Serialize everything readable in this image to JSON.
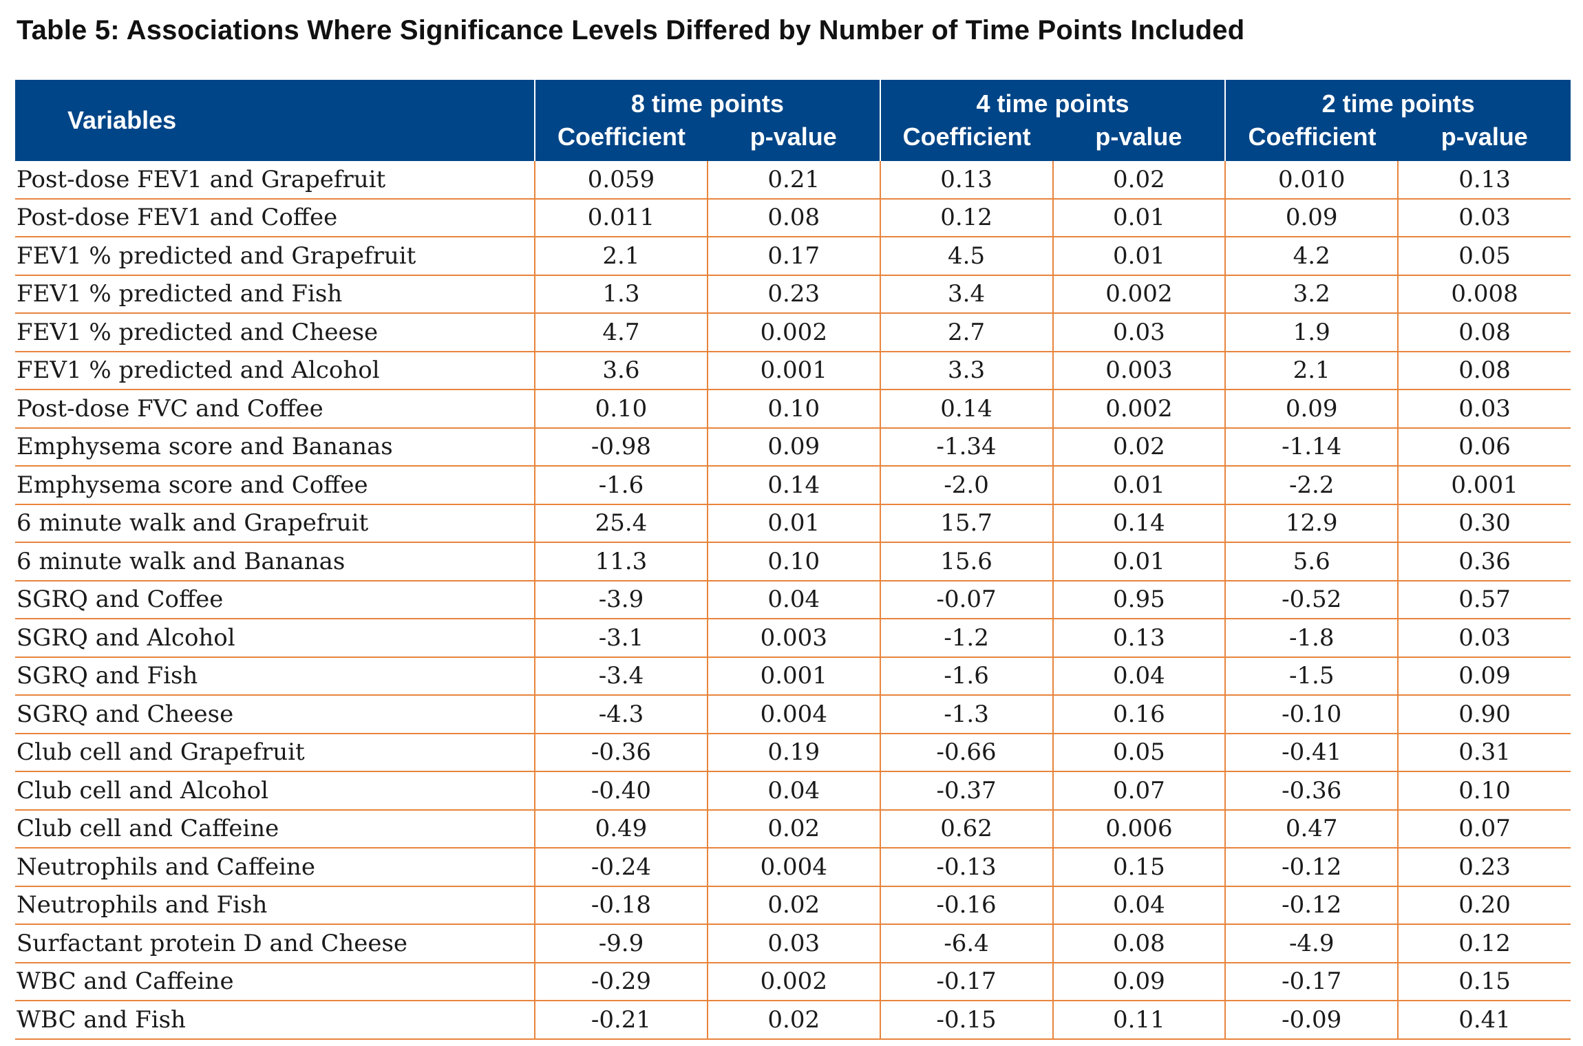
{
  "title": "Table 5:  Associations Where Significance Levels Differed by Number of Time Points Included",
  "header": {
    "variables": "Variables",
    "groups": [
      {
        "label": "8 time points",
        "coef": "Coefficient",
        "p": "p-value"
      },
      {
        "label": "4 time points",
        "coef": "Coefficient",
        "p": "p-value"
      },
      {
        "label": "2 time points",
        "coef": "Coefficient",
        "p": "p-value"
      }
    ]
  },
  "rows": [
    [
      "Post-dose FEV1 and Grapefruit",
      "0.059",
      "0.21",
      "0.13",
      "0.02",
      "0.010",
      "0.13"
    ],
    [
      "Post-dose FEV1 and Coffee",
      "0.011",
      "0.08",
      "0.12",
      "0.01",
      "0.09",
      "0.03"
    ],
    [
      "FEV1 % predicted and Grapefruit",
      "2.1",
      "0.17",
      "4.5",
      "0.01",
      "4.2",
      "0.05"
    ],
    [
      "FEV1 % predicted and Fish",
      "1.3",
      "0.23",
      "3.4",
      "0.002",
      "3.2",
      "0.008"
    ],
    [
      "FEV1 % predicted and Cheese",
      "4.7",
      "0.002",
      "2.7",
      "0.03",
      "1.9",
      "0.08"
    ],
    [
      "FEV1 % predicted and Alcohol",
      "3.6",
      "0.001",
      "3.3",
      "0.003",
      "2.1",
      "0.08"
    ],
    [
      "Post-dose FVC and Coffee",
      "0.10",
      "0.10",
      "0.14",
      "0.002",
      "0.09",
      "0.03"
    ],
    [
      "Emphysema score and Bananas",
      "-0.98",
      "0.09",
      "-1.34",
      "0.02",
      "-1.14",
      "0.06"
    ],
    [
      "Emphysema score and Coffee",
      "-1.6",
      "0.14",
      "-2.0",
      "0.01",
      "-2.2",
      "0.001"
    ],
    [
      "6 minute walk and Grapefruit",
      "25.4",
      "0.01",
      "15.7",
      "0.14",
      "12.9",
      "0.30"
    ],
    [
      "6 minute walk and Bananas",
      "11.3",
      "0.10",
      "15.6",
      "0.01",
      "5.6",
      "0.36"
    ],
    [
      "SGRQ and Coffee",
      "-3.9",
      "0.04",
      "-0.07",
      "0.95",
      "-0.52",
      "0.57"
    ],
    [
      "SGRQ and Alcohol",
      "-3.1",
      "0.003",
      "-1.2",
      "0.13",
      "-1.8",
      "0.03"
    ],
    [
      "SGRQ and Fish",
      "-3.4",
      "0.001",
      "-1.6",
      "0.04",
      "-1.5",
      "0.09"
    ],
    [
      "SGRQ and Cheese",
      "-4.3",
      "0.004",
      "-1.3",
      "0.16",
      "-0.10",
      "0.90"
    ],
    [
      "Club cell and Grapefruit",
      "-0.36",
      "0.19",
      "-0.66",
      "0.05",
      "-0.41",
      "0.31"
    ],
    [
      "Club cell and Alcohol",
      "-0.40",
      "0.04",
      "-0.37",
      "0.07",
      "-0.36",
      "0.10"
    ],
    [
      "Club cell and Caffeine",
      "0.49",
      "0.02",
      "0.62",
      "0.006",
      "0.47",
      "0.07"
    ],
    [
      "Neutrophils and Caffeine",
      "-0.24",
      "0.004",
      "-0.13",
      "0.15",
      "-0.12",
      "0.23"
    ],
    [
      "Neutrophils and Fish",
      "-0.18",
      "0.02",
      "-0.16",
      "0.04",
      "-0.12",
      "0.20"
    ],
    [
      "Surfactant protein D and Cheese",
      "-9.9",
      "0.03",
      "-6.4",
      "0.08",
      "-4.9",
      "0.12"
    ],
    [
      "WBC and Caffeine",
      "-0.29",
      "0.002",
      "-0.17",
      "0.09",
      "-0.17",
      "0.15"
    ],
    [
      "WBC and Fish",
      "-0.21",
      "0.02",
      "-0.15",
      "0.11",
      "-0.09",
      "0.41"
    ]
  ]
}
